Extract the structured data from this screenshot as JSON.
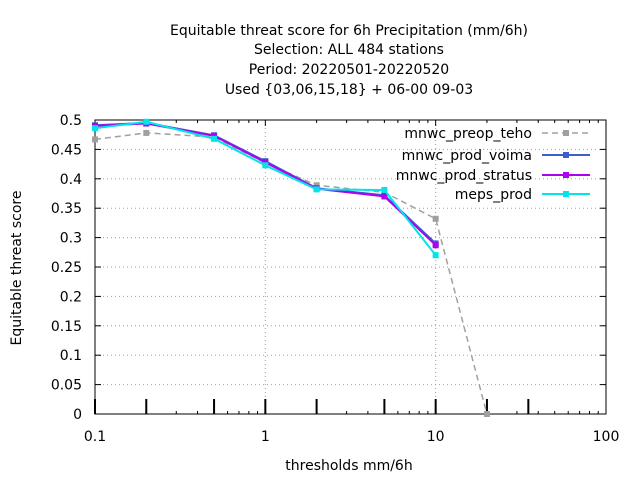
{
  "chart_data": {
    "type": "line",
    "title_lines": [
      "Equitable threat score  for 6h Precipitation (mm/6h)",
      "Selection: ALL     484 stations",
      "Period: 20220501-20220520",
      "Used {03,06,15,18} + 06-00 09-03"
    ],
    "xlabel": "thresholds mm/6h",
    "ylabel": "Equitable threat score",
    "xscale": "log",
    "xlim": [
      0.1,
      100
    ],
    "ylim": [
      0,
      0.5
    ],
    "x_ticks": [
      0.1,
      1,
      10,
      100
    ],
    "x_tick_labels": [
      "0.1",
      "1",
      "10",
      "100"
    ],
    "y_ticks": [
      0,
      0.05,
      0.1,
      0.15,
      0.2,
      0.25,
      0.3,
      0.35,
      0.4,
      0.45,
      0.5
    ],
    "y_tick_labels": [
      "0",
      "0.05",
      "0.1",
      "0.15",
      "0.2",
      "0.25",
      "0.3",
      "0.35",
      "0.4",
      "0.45",
      "0.5"
    ],
    "grid": true,
    "legend_position": "top-right",
    "bottom_marks_x": [
      0.1,
      0.2,
      0.5,
      1,
      2,
      5,
      10,
      20,
      35
    ],
    "series": [
      {
        "name": "mnwc_preop_teho",
        "color": "#a0a0a0",
        "dashed": true,
        "x": [
          0.1,
          0.2,
          0.5,
          1,
          2,
          5,
          10,
          20
        ],
        "y": [
          0.467,
          0.478,
          0.471,
          0.427,
          0.389,
          0.377,
          0.332,
          0.0
        ]
      },
      {
        "name": "mnwc_prod_voima",
        "color": "#3b5fcd",
        "dashed": false,
        "x": [
          0.1,
          0.2,
          0.5,
          1,
          2,
          5,
          10
        ],
        "y": [
          0.491,
          0.495,
          0.474,
          0.43,
          0.384,
          0.372,
          0.29
        ]
      },
      {
        "name": "mnwc_prod_stratus",
        "color": "#b000f0",
        "dashed": false,
        "x": [
          0.1,
          0.2,
          0.5,
          1,
          2,
          5,
          10
        ],
        "y": [
          0.49,
          0.494,
          0.473,
          0.428,
          0.383,
          0.37,
          0.287
        ]
      },
      {
        "name": "meps_prod",
        "color": "#00e5e5",
        "dashed": false,
        "x": [
          0.1,
          0.2,
          0.5,
          1,
          2,
          5,
          10
        ],
        "y": [
          0.486,
          0.497,
          0.468,
          0.423,
          0.382,
          0.381,
          0.27
        ]
      }
    ]
  }
}
